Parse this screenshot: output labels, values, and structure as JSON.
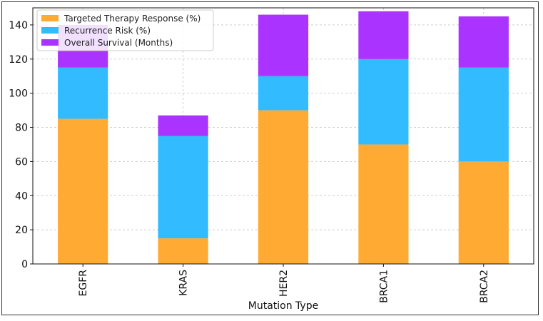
{
  "chart_data": {
    "type": "bar",
    "stacked": true,
    "categories": [
      "EGFR",
      "KRAS",
      "HER2",
      "BRCA1",
      "BRCA2"
    ],
    "series": [
      {
        "name": "Targeted Therapy Response (%)",
        "color": "#FFAA33",
        "values": [
          85,
          15,
          90,
          70,
          60
        ]
      },
      {
        "name": "Recurrence Risk (%)",
        "color": "#33BBFF",
        "values": [
          30,
          60,
          20,
          50,
          55
        ]
      },
      {
        "name": "Overall Survival (Months)",
        "color": "#AA33FF",
        "values": [
          25,
          12,
          36,
          28,
          30
        ]
      }
    ],
    "title": "",
    "xlabel": "Mutation Type",
    "ylabel": "",
    "ylim": [
      0,
      150
    ],
    "yticks": [
      0,
      20,
      40,
      60,
      80,
      100,
      120,
      140
    ],
    "grid": true,
    "legend_position": "upper-left"
  }
}
